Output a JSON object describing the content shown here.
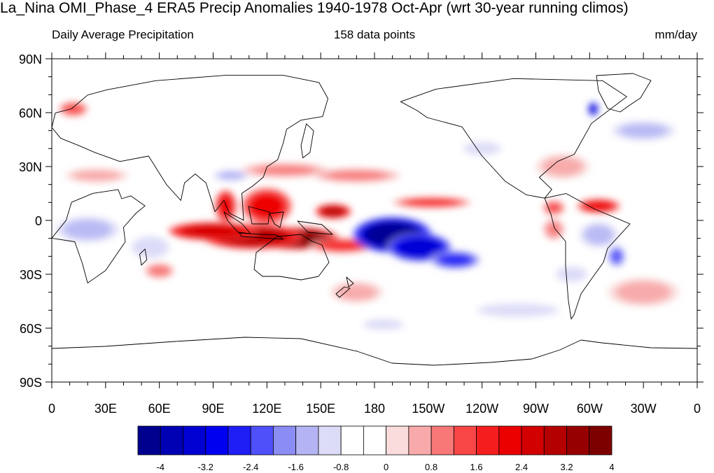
{
  "title": "La_Nina OMI_Phase_4 ERA5 Precip Anomalies 1940-1978 Oct-Apr (wrt 30-year running climos)",
  "subtitle_left": "Daily Average Precipitation",
  "subtitle_center": "158 data points",
  "subtitle_right": "mm/day",
  "lat_labels": [
    "90N",
    "60N",
    "30N",
    "0",
    "30S",
    "60S",
    "90S"
  ],
  "lon_labels": [
    "0",
    "30E",
    "60E",
    "90E",
    "120E",
    "150E",
    "180",
    "150W",
    "120W",
    "90W",
    "60W",
    "30W",
    "0"
  ],
  "colorbar": {
    "labels": [
      "-4",
      "-3.2",
      "-2.4",
      "-1.6",
      "-0.8",
      "0",
      "0.8",
      "1.6",
      "2.4",
      "3.2",
      "4"
    ],
    "colors": [
      "#00008f",
      "#0000b4",
      "#0000d2",
      "#0000f0",
      "#1e1ef5",
      "#5050fa",
      "#8c8cf5",
      "#b4b4f5",
      "#dcdcf8",
      "#ffffff",
      "#ffffff",
      "#fadcdc",
      "#f8aaaa",
      "#f87878",
      "#f84646",
      "#f51e1e",
      "#eb0000",
      "#d20000",
      "#b40000",
      "#960000",
      "#7d0000"
    ]
  },
  "map": {
    "projection": "cylindrical-equidistant",
    "lon_range": [
      0,
      360
    ],
    "lat_range": [
      -90,
      90
    ],
    "anomalies": [
      {
        "lon": 135,
        "lat": -10,
        "rx": 25,
        "ry": 6,
        "value": 4.3
      },
      {
        "lon": 112,
        "lat": -9,
        "rx": 28,
        "ry": 7,
        "value": 3.4
      },
      {
        "lon": 90,
        "lat": -6,
        "rx": 25,
        "ry": 5,
        "value": 3
      },
      {
        "lon": 120,
        "lat": 8,
        "rx": 14,
        "ry": 10,
        "value": 2.6
      },
      {
        "lon": 97,
        "lat": 8,
        "rx": 6,
        "ry": 9,
        "value": 2.4
      },
      {
        "lon": 157,
        "lat": 5,
        "rx": 10,
        "ry": 4,
        "value": 3.2
      },
      {
        "lon": 162,
        "lat": -14,
        "rx": 18,
        "ry": 4,
        "value": 2
      },
      {
        "lon": 190,
        "lat": -8,
        "rx": 22,
        "ry": 10,
        "value": -4.3
      },
      {
        "lon": 205,
        "lat": -15,
        "rx": 18,
        "ry": 8,
        "value": -3.5
      },
      {
        "lon": 225,
        "lat": -22,
        "rx": 14,
        "ry": 5,
        "value": -2.6
      },
      {
        "lon": 212,
        "lat": 10,
        "rx": 22,
        "ry": 3,
        "value": 2
      },
      {
        "lon": 280,
        "lat": 7,
        "rx": 6,
        "ry": 4,
        "value": 1.6
      },
      {
        "lon": 305,
        "lat": 8,
        "rx": 12,
        "ry": 4,
        "value": 2.6
      },
      {
        "lon": 315,
        "lat": -20,
        "rx": 5,
        "ry": 6,
        "value": -2
      },
      {
        "lon": 305,
        "lat": -8,
        "rx": 12,
        "ry": 8,
        "value": -1.2
      },
      {
        "lon": 302,
        "lat": 62,
        "rx": 3,
        "ry": 4,
        "value": -3.4
      },
      {
        "lon": 330,
        "lat": 50,
        "rx": 20,
        "ry": 6,
        "value": -1.2
      },
      {
        "lon": 20,
        "lat": -5,
        "rx": 20,
        "ry": 8,
        "value": -1.2
      },
      {
        "lon": 55,
        "lat": -15,
        "rx": 12,
        "ry": 7,
        "value": -1
      },
      {
        "lon": 100,
        "lat": 25,
        "rx": 10,
        "ry": 3,
        "value": -1.3
      },
      {
        "lon": 130,
        "lat": 28,
        "rx": 25,
        "ry": 4,
        "value": 1.2
      },
      {
        "lon": 170,
        "lat": 25,
        "rx": 25,
        "ry": 4,
        "value": 1.1
      },
      {
        "lon": 25,
        "lat": 25,
        "rx": 18,
        "ry": 4,
        "value": 0.9
      },
      {
        "lon": 12,
        "lat": 62,
        "rx": 8,
        "ry": 4,
        "value": 1.7
      },
      {
        "lon": 60,
        "lat": -28,
        "rx": 8,
        "ry": 4,
        "value": 1.4
      },
      {
        "lon": 170,
        "lat": -40,
        "rx": 15,
        "ry": 6,
        "value": 0.9
      },
      {
        "lon": 240,
        "lat": 40,
        "rx": 14,
        "ry": 5,
        "value": -0.9
      },
      {
        "lon": 285,
        "lat": 30,
        "rx": 15,
        "ry": 7,
        "value": 0.9
      },
      {
        "lon": 280,
        "lat": -5,
        "rx": 6,
        "ry": 6,
        "value": 1.1
      },
      {
        "lon": 290,
        "lat": -30,
        "rx": 10,
        "ry": 5,
        "value": -1
      },
      {
        "lon": 330,
        "lat": -40,
        "rx": 20,
        "ry": 8,
        "value": 0.9
      },
      {
        "lon": 260,
        "lat": -50,
        "rx": 30,
        "ry": 5,
        "value": -0.9
      },
      {
        "lon": 185,
        "lat": -58,
        "rx": 15,
        "ry": 4,
        "value": -0.9
      }
    ]
  }
}
